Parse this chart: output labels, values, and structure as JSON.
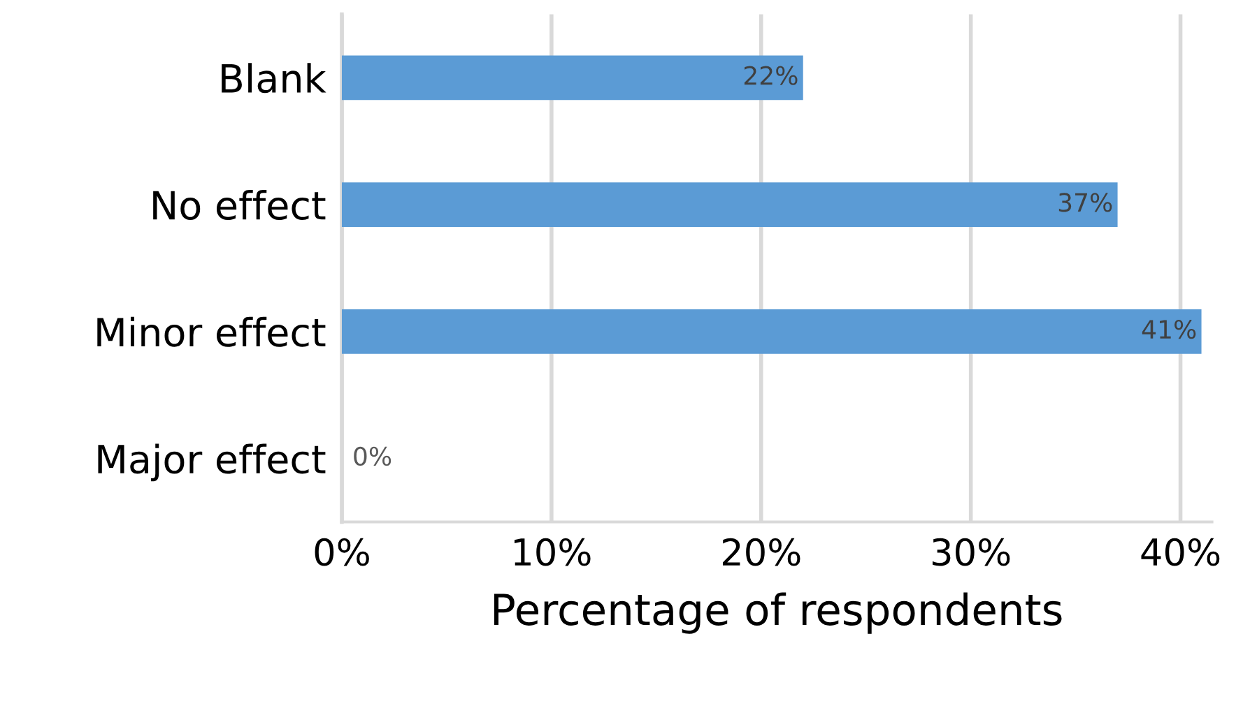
{
  "chart_data": {
    "type": "bar",
    "orientation": "horizontal",
    "xlabel": "Percentage of respondents",
    "categories": [
      "Blank",
      "No effect",
      "Minor effect",
      "Major effect"
    ],
    "values": [
      22,
      37,
      41,
      0
    ],
    "value_labels": [
      "22%",
      "37%",
      "41%",
      "0%"
    ],
    "color": "#5b9bd5",
    "xlim": [
      0,
      41.5
    ],
    "xticks": [
      {
        "value": 0,
        "label": "0%"
      },
      {
        "value": 10,
        "label": "10%"
      },
      {
        "value": 20,
        "label": "20%"
      },
      {
        "value": 30,
        "label": "30%"
      },
      {
        "value": 40,
        "label": "40%"
      }
    ],
    "grid": "x",
    "legend": false
  }
}
